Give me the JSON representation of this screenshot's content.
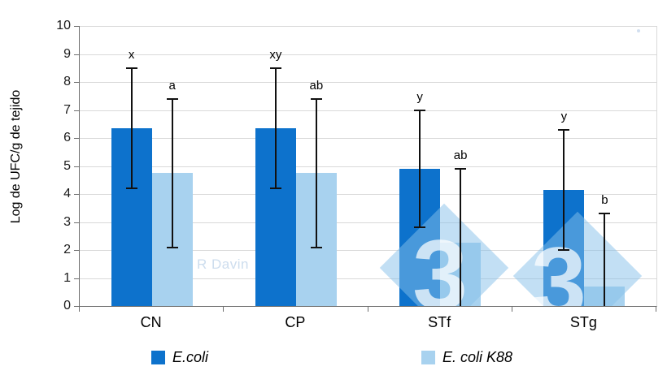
{
  "chart_data": {
    "type": "bar",
    "title": "",
    "xlabel": "",
    "ylabel": "Log de UFC/g de tejido",
    "categories": [
      "CN",
      "CP",
      "STf",
      "STg"
    ],
    "series": [
      {
        "name": "E.coli",
        "color": "#0d72cc",
        "values": [
          6.35,
          6.35,
          4.9,
          4.15
        ],
        "errors_high": [
          8.5,
          8.5,
          7.0,
          6.3
        ],
        "errors_low": [
          4.2,
          4.2,
          2.8,
          2.0
        ],
        "sig_labels": [
          "x",
          "xy",
          "y",
          "y"
        ]
      },
      {
        "name": "E. coli K88",
        "color": "#a8d2ef",
        "values": [
          4.75,
          4.75,
          2.25,
          0.7
        ],
        "errors_high": [
          7.4,
          7.4,
          4.9,
          3.3
        ],
        "errors_low": [
          2.1,
          2.1,
          null,
          null
        ],
        "sig_labels": [
          "a",
          "ab",
          "ab",
          "b"
        ]
      }
    ],
    "ylim": [
      0,
      10
    ],
    "yticks": [
      0,
      1,
      2,
      3,
      4,
      5,
      6,
      7,
      8,
      9,
      10
    ],
    "grid": true,
    "legend_position": "bottom"
  },
  "watermarks": {
    "author": "R Davin",
    "mark": "3"
  }
}
